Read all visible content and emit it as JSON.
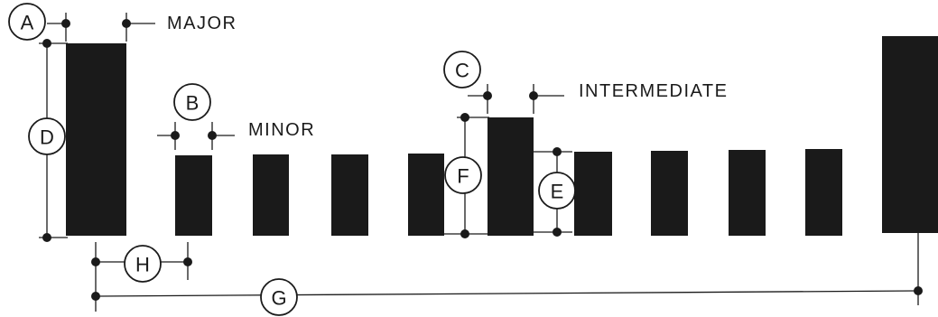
{
  "captions": {
    "major": "MAJOR",
    "minor": "MINOR",
    "intermediate": "INTERMEDIATE"
  },
  "dimension_labels": {
    "a": "A",
    "b": "B",
    "c": "C",
    "d": "D",
    "e": "E",
    "f": "F",
    "g": "G",
    "h": "H"
  },
  "bar_kinds": [
    "major",
    "minor",
    "minor",
    "minor",
    "minor",
    "intermediate",
    "minor",
    "minor",
    "minor",
    "minor",
    "major"
  ]
}
